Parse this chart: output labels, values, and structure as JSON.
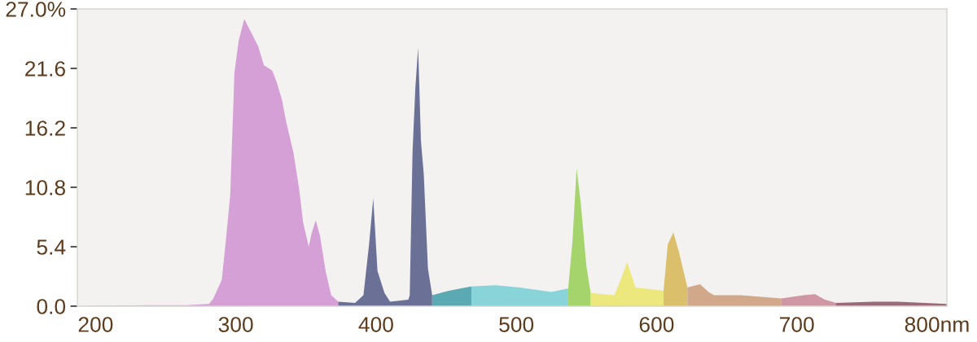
{
  "chart_data": {
    "type": "area",
    "xlim": [
      187,
      807
    ],
    "xticks": [
      200,
      300,
      400,
      500,
      600,
      700,
      {
        "value": 800,
        "label": "800nm"
      }
    ],
    "ylim": [
      0,
      27
    ],
    "yticks": [
      {
        "value": 0,
        "label": "0.0"
      },
      5.4,
      10.8,
      16.2,
      21.6,
      {
        "value": 27,
        "label": "27.0%"
      }
    ],
    "series": [
      {
        "color": "#d4a0d6",
        "x": [
          187,
          238,
          265,
          281,
          284,
          290,
          293,
          296,
          299,
          302,
          306,
          310,
          316,
          320,
          326,
          329,
          333,
          336,
          341,
          345,
          348,
          352,
          354,
          357,
          360,
          364,
          368,
          373
        ],
        "values": [
          0,
          0.1,
          0.1,
          0.2,
          0.7,
          2.4,
          6.1,
          10.1,
          21.2,
          24.1,
          26.1,
          25.1,
          23.6,
          21.9,
          21.4,
          20.4,
          18.7,
          16.7,
          14.0,
          10.8,
          7.6,
          5.4,
          6.6,
          7.8,
          6.4,
          3.2,
          1.0,
          0.4
        ]
      },
      {
        "color": "#6b7096",
        "x": [
          373,
          385,
          391,
          395,
          398,
          401,
          406,
          410,
          423,
          424,
          426,
          428,
          430,
          432,
          434,
          437,
          440
        ],
        "values": [
          0.4,
          0.3,
          1.0,
          5.6,
          9.8,
          3.2,
          1.2,
          0.4,
          0.6,
          1.0,
          14.0,
          19.8,
          23.5,
          15.0,
          12.0,
          3.4,
          1.0
        ]
      },
      {
        "color": "#5aa9b3",
        "x": [
          440,
          452,
          468
        ],
        "values": [
          1.0,
          1.4,
          1.8
        ]
      },
      {
        "color": "#88d4d8",
        "x": [
          468,
          485,
          502,
          525,
          537
        ],
        "values": [
          1.8,
          1.9,
          1.7,
          1.3,
          1.6
        ]
      },
      {
        "color": "#a5d46c",
        "x": [
          537,
          540,
          543,
          546,
          550,
          553
        ],
        "values": [
          1.6,
          5.8,
          12.5,
          9.3,
          3.6,
          1.2
        ]
      },
      {
        "color": "#ece87e",
        "x": [
          553,
          570,
          575,
          579,
          585,
          605
        ],
        "values": [
          1.2,
          1.0,
          2.6,
          4.0,
          1.7,
          1.4
        ]
      },
      {
        "color": "#dcbf6b",
        "x": [
          605,
          608,
          612,
          616,
          622
        ],
        "values": [
          1.4,
          5.6,
          6.7,
          4.9,
          1.7
        ]
      },
      {
        "color": "#d1a98a",
        "x": [
          622,
          631,
          637,
          641,
          660,
          689
        ],
        "values": [
          1.7,
          2.0,
          1.3,
          1.0,
          1.0,
          0.7
        ]
      },
      {
        "color": "#cf96a3",
        "x": [
          689,
          705,
          713,
          720,
          728
        ],
        "values": [
          0.7,
          1.0,
          1.1,
          0.6,
          0.3
        ]
      },
      {
        "color": "#9a6a78",
        "x": [
          728,
          755,
          772,
          807
        ],
        "values": [
          0.3,
          0.4,
          0.4,
          0.2
        ]
      }
    ]
  }
}
